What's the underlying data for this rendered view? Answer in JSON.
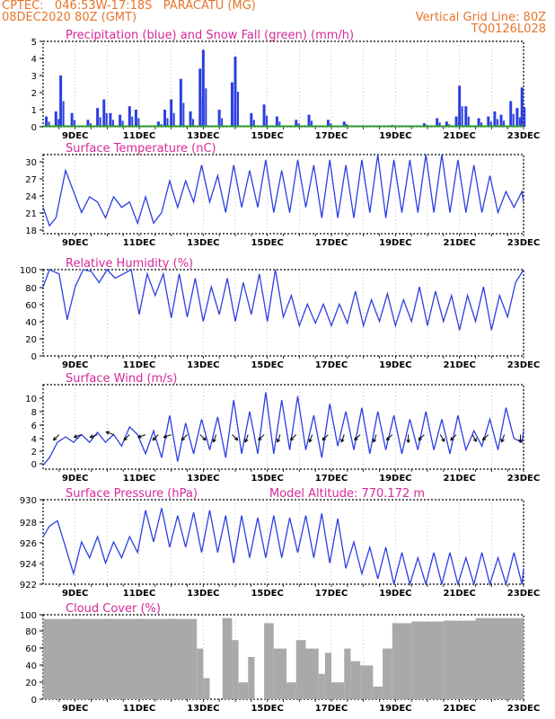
{
  "header": {
    "line1_left": "CPTEC:   046:53W-17:18S   PARACATU (MG)",
    "line2_left": "08DEC2020 80Z (GMT)",
    "line2_right": "Vertical Grid Line: 80Z",
    "line3_right": "TQ0126L028"
  },
  "x_ticks": [
    "9DEC",
    "11DEC",
    "13DEC",
    "15DEC",
    "17DEC",
    "19DEC",
    "21DEC",
    "23DEC"
  ],
  "colors": {
    "line": "#2b3fe0",
    "snow": "#2e9e2e",
    "cloud": "#a9a9a9",
    "title": "#d6289a",
    "header": "#e8742a"
  },
  "panels": {
    "precip": {
      "title": "Precipitation (blue) and Snow Fall (green) (mm/h)",
      "yticks": [
        "0",
        "1",
        "2",
        "3",
        "4",
        "5"
      ]
    },
    "temp": {
      "title": "Surface Temperature (nC)",
      "yticks": [
        "18",
        "21",
        "24",
        "27",
        "30"
      ]
    },
    "humidity": {
      "title": "Relative Humidity (%)",
      "yticks": [
        "0",
        "20",
        "40",
        "60",
        "80",
        "100"
      ]
    },
    "wind": {
      "title": "Surface Wind (m/s)",
      "yticks": [
        "0",
        "2",
        "4",
        "6",
        "8",
        "10"
      ]
    },
    "pressure": {
      "title": "Surface Pressure (hPa)",
      "subtitle": "Model Altitude: 770.172 m",
      "yticks": [
        "922",
        "924",
        "926",
        "928",
        "930"
      ]
    },
    "cloud": {
      "title": "Cloud Cover (%)",
      "yticks": [
        "0",
        "20",
        "40",
        "60",
        "80",
        "100"
      ]
    }
  },
  "chart_data": [
    {
      "type": "bar",
      "title": "Precipitation (blue) and Snow Fall (green) (mm/h)",
      "ylim": [
        0,
        5
      ],
      "xlim_days": [
        8.0,
        23.0
      ],
      "series": [
        {
          "name": "Precipitation",
          "values_by_day": [
            [
              8.1,
              0.6
            ],
            [
              8.4,
              0.9
            ],
            [
              8.55,
              3.0
            ],
            [
              8.9,
              0.8
            ],
            [
              9.4,
              0.4
            ],
            [
              9.7,
              1.1
            ],
            [
              9.9,
              1.6
            ],
            [
              10.1,
              0.8
            ],
            [
              10.4,
              0.7
            ],
            [
              10.7,
              1.2
            ],
            [
              10.9,
              1.0
            ],
            [
              11.6,
              0.3
            ],
            [
              11.8,
              1.0
            ],
            [
              12.0,
              1.6
            ],
            [
              12.3,
              2.8
            ],
            [
              12.6,
              0.9
            ],
            [
              12.9,
              3.4
            ],
            [
              13.0,
              4.5
            ],
            [
              13.5,
              1.0
            ],
            [
              13.9,
              2.6
            ],
            [
              14.0,
              4.1
            ],
            [
              14.5,
              0.8
            ],
            [
              14.9,
              1.3
            ],
            [
              15.3,
              0.6
            ],
            [
              15.9,
              0.4
            ],
            [
              16.3,
              0.7
            ],
            [
              16.9,
              0.4
            ],
            [
              17.4,
              0.3
            ],
            [
              18.9,
              0.1
            ],
            [
              19.9,
              0.2
            ],
            [
              20.3,
              0.5
            ],
            [
              20.6,
              0.3
            ],
            [
              20.9,
              0.6
            ],
            [
              21.0,
              2.4
            ],
            [
              21.2,
              1.2
            ],
            [
              21.6,
              0.5
            ],
            [
              21.9,
              0.6
            ],
            [
              22.1,
              0.9
            ],
            [
              22.3,
              0.7
            ],
            [
              22.6,
              1.5
            ],
            [
              22.8,
              1.1
            ],
            [
              22.95,
              2.3
            ]
          ]
        },
        {
          "name": "Snow Fall",
          "values_by_day": [
            [
              8.0,
              0
            ],
            [
              23.0,
              0
            ]
          ]
        }
      ]
    },
    {
      "type": "line",
      "title": "Surface Temperature (nC)",
      "ylim": [
        16,
        31
      ],
      "x_days": [
        8.0,
        8.2,
        8.4,
        8.7,
        8.95,
        9.2,
        9.45,
        9.7,
        9.95,
        10.2,
        10.45,
        10.7,
        10.95,
        11.2,
        11.45,
        11.7,
        11.95,
        12.2,
        12.45,
        12.7,
        12.95,
        13.2,
        13.45,
        13.7,
        13.95,
        14.2,
        14.45,
        14.7,
        14.95,
        15.2,
        15.45,
        15.7,
        15.95,
        16.2,
        16.45,
        16.7,
        16.95,
        17.2,
        17.45,
        17.7,
        17.95,
        18.2,
        18.45,
        18.7,
        18.95,
        19.2,
        19.45,
        19.7,
        19.95,
        20.2,
        20.45,
        20.7,
        20.95,
        21.2,
        21.45,
        21.7,
        21.95,
        22.2,
        22.45,
        22.7,
        22.95,
        23.0
      ],
      "values": [
        21,
        17.5,
        19,
        28,
        24,
        20,
        23,
        22,
        19,
        23,
        21,
        22,
        18,
        23,
        18,
        20,
        26,
        21,
        26,
        22,
        29,
        22,
        27,
        20,
        29,
        21,
        28,
        21,
        30,
        20,
        28,
        20,
        30,
        21,
        29,
        19,
        30,
        19,
        29,
        19,
        30,
        20,
        31,
        19,
        30,
        20,
        30,
        20,
        31,
        20,
        31,
        20,
        30,
        20,
        29,
        20,
        27,
        20,
        24,
        21,
        24,
        22
      ]
    },
    {
      "type": "line",
      "title": "Relative Humidity (%)",
      "ylim": [
        0,
        100
      ],
      "x_days": [
        8.0,
        8.2,
        8.5,
        8.75,
        9.0,
        9.25,
        9.5,
        9.75,
        10.0,
        10.25,
        10.5,
        10.75,
        11.0,
        11.25,
        11.5,
        11.75,
        12.0,
        12.25,
        12.5,
        12.75,
        13.0,
        13.25,
        13.5,
        13.75,
        14.0,
        14.25,
        14.5,
        14.75,
        15.0,
        15.25,
        15.5,
        15.75,
        16.0,
        16.25,
        16.5,
        16.75,
        17.0,
        17.25,
        17.5,
        17.75,
        18.0,
        18.25,
        18.5,
        18.75,
        19.0,
        19.25,
        19.5,
        19.75,
        20.0,
        20.25,
        20.5,
        20.75,
        21.0,
        21.25,
        21.5,
        21.75,
        22.0,
        22.25,
        22.5,
        22.75,
        23.0
      ],
      "values": [
        80,
        100,
        95,
        42,
        80,
        100,
        98,
        85,
        100,
        90,
        95,
        100,
        48,
        95,
        70,
        95,
        44,
        95,
        45,
        90,
        40,
        80,
        48,
        90,
        40,
        85,
        48,
        95,
        40,
        100,
        45,
        70,
        35,
        60,
        38,
        60,
        35,
        60,
        38,
        75,
        35,
        65,
        40,
        72,
        35,
        65,
        40,
        80,
        35,
        75,
        40,
        70,
        30,
        70,
        40,
        80,
        30,
        70,
        45,
        85,
        100
      ]
    },
    {
      "type": "line",
      "title": "Surface Wind (m/s)",
      "ylim": [
        0,
        11
      ],
      "x_days": [
        8.0,
        8.2,
        8.45,
        8.7,
        8.95,
        9.2,
        9.45,
        9.7,
        9.95,
        10.2,
        10.45,
        10.7,
        10.95,
        11.2,
        11.45,
        11.7,
        11.95,
        12.2,
        12.45,
        12.7,
        12.95,
        13.2,
        13.45,
        13.7,
        13.95,
        14.2,
        14.45,
        14.7,
        14.95,
        15.2,
        15.45,
        15.7,
        15.95,
        16.2,
        16.45,
        16.7,
        16.95,
        17.2,
        17.45,
        17.7,
        17.95,
        18.2,
        18.45,
        18.7,
        18.95,
        19.2,
        19.45,
        19.7,
        19.95,
        20.2,
        20.45,
        20.7,
        20.95,
        21.2,
        21.45,
        21.7,
        21.95,
        22.2,
        22.45,
        22.7,
        22.95,
        23.0
      ],
      "values": [
        0.5,
        1.5,
        3.5,
        4.2,
        3.5,
        4.5,
        3.5,
        4.8,
        3.5,
        4.5,
        3.0,
        5.5,
        4.5,
        2.0,
        5.0,
        1.5,
        7.0,
        1.0,
        6.0,
        2.0,
        6.5,
        2.5,
        6.8,
        1.5,
        9.0,
        2.0,
        7.5,
        2.0,
        10.0,
        2.0,
        9.0,
        2.5,
        9.5,
        2.5,
        7.0,
        1.5,
        8.5,
        3.0,
        7.5,
        2.5,
        8.0,
        2.0,
        7.5,
        2.5,
        7.0,
        2.0,
        6.5,
        2.5,
        7.5,
        2.5,
        6.5,
        2.0,
        7.0,
        2.5,
        5.0,
        3.0,
        6.5,
        2.5,
        8.0,
        4.0,
        3.5,
        5.0
      ],
      "arrows_deg": [
        [
          8.5,
          225
        ],
        [
          9.2,
          200
        ],
        [
          9.7,
          200
        ],
        [
          10.2,
          160
        ],
        [
          10.7,
          225
        ],
        [
          11.2,
          200
        ],
        [
          11.6,
          225
        ],
        [
          12.0,
          200
        ],
        [
          12.5,
          225
        ],
        [
          12.9,
          315
        ],
        [
          13.4,
          250
        ],
        [
          13.9,
          315
        ],
        [
          14.4,
          250
        ],
        [
          14.9,
          225
        ],
        [
          15.4,
          250
        ],
        [
          15.9,
          225
        ],
        [
          16.4,
          250
        ],
        [
          16.9,
          225
        ],
        [
          17.4,
          250
        ],
        [
          17.9,
          225
        ],
        [
          18.4,
          250
        ],
        [
          18.9,
          225
        ],
        [
          19.4,
          270
        ],
        [
          19.9,
          225
        ],
        [
          20.4,
          300
        ],
        [
          20.9,
          225
        ],
        [
          21.4,
          300
        ],
        [
          21.9,
          225
        ],
        [
          22.4,
          250
        ],
        [
          22.9,
          270
        ]
      ]
    },
    {
      "type": "line",
      "title": "Surface Pressure (hPa)",
      "ylim": [
        922,
        930
      ],
      "x_days": [
        8.0,
        8.2,
        8.45,
        8.7,
        8.95,
        9.2,
        9.45,
        9.7,
        9.95,
        10.2,
        10.45,
        10.7,
        10.95,
        11.2,
        11.45,
        11.7,
        11.95,
        12.2,
        12.45,
        12.7,
        12.95,
        13.2,
        13.45,
        13.7,
        13.95,
        14.2,
        14.45,
        14.7,
        14.95,
        15.2,
        15.45,
        15.7,
        15.95,
        16.2,
        16.45,
        16.7,
        16.95,
        17.2,
        17.45,
        17.7,
        17.95,
        18.2,
        18.45,
        18.7,
        18.95,
        19.2,
        19.45,
        19.7,
        19.95,
        20.2,
        20.45,
        20.7,
        20.95,
        21.2,
        21.45,
        21.7,
        21.95,
        22.2,
        22.45,
        22.7,
        22.95,
        23.0
      ],
      "values": [
        926.5,
        927.5,
        928.0,
        925.5,
        923.0,
        926.0,
        924.5,
        926.5,
        924.0,
        926.0,
        924.5,
        926.5,
        925.0,
        929.0,
        926.0,
        929.2,
        925.5,
        928.5,
        925.5,
        928.8,
        925.0,
        929.0,
        925.0,
        928.5,
        924.0,
        928.5,
        924.5,
        928.3,
        924.5,
        928.5,
        924.5,
        928.3,
        925.0,
        928.5,
        924.5,
        928.7,
        924.0,
        928.2,
        923.5,
        926.0,
        923.0,
        925.5,
        922.5,
        925.5,
        922.0,
        925.0,
        922.0,
        924.5,
        922.0,
        925.0,
        922.0,
        925.0,
        922.0,
        924.5,
        922.0,
        925.0,
        922.0,
        924.5,
        922.0,
        925.0,
        922.0,
        923.5
      ]
    },
    {
      "type": "bar",
      "title": "Cloud Cover (%)",
      "ylim": [
        0,
        100
      ],
      "segments_days": [
        [
          8.0,
          12.8,
          95
        ],
        [
          12.8,
          13.0,
          60
        ],
        [
          13.0,
          13.2,
          25
        ],
        [
          13.2,
          13.6,
          0
        ],
        [
          13.6,
          13.9,
          96
        ],
        [
          13.9,
          14.1,
          70
        ],
        [
          14.1,
          14.4,
          20
        ],
        [
          14.4,
          14.6,
          50
        ],
        [
          14.6,
          14.9,
          0
        ],
        [
          14.9,
          15.2,
          90
        ],
        [
          15.2,
          15.6,
          60
        ],
        [
          15.6,
          15.9,
          20
        ],
        [
          15.9,
          16.2,
          70
        ],
        [
          16.2,
          16.6,
          60
        ],
        [
          16.6,
          16.8,
          30
        ],
        [
          16.8,
          17.0,
          55
        ],
        [
          17.0,
          17.4,
          20
        ],
        [
          17.4,
          17.6,
          60
        ],
        [
          17.6,
          17.9,
          45
        ],
        [
          17.9,
          18.3,
          40
        ],
        [
          18.3,
          18.6,
          15
        ],
        [
          18.6,
          18.9,
          60
        ],
        [
          18.9,
          19.5,
          90
        ],
        [
          19.5,
          20.5,
          92
        ],
        [
          20.5,
          21.5,
          93
        ],
        [
          21.5,
          23.0,
          96
        ]
      ]
    }
  ]
}
